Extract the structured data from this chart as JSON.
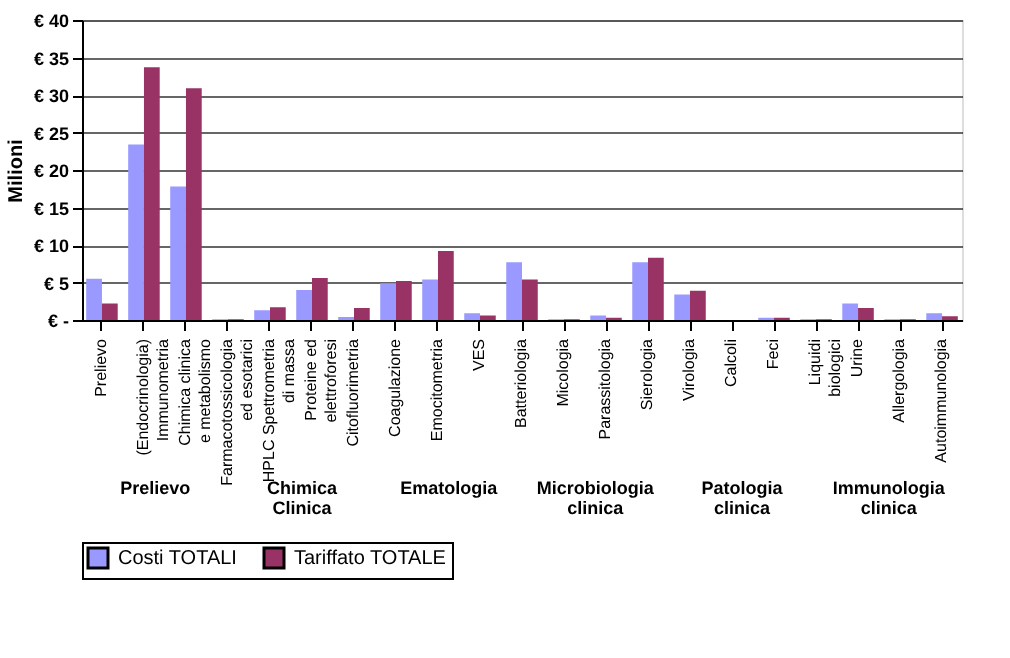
{
  "chart_data": {
    "type": "bar",
    "ylabel": "Milioni",
    "categories": [
      "Prelievo",
      "(Endocrinologia) Immunometria",
      "Chimica clinica e metabolismo",
      "Farmacotossicologia ed esotarici",
      "HPLC Spettrometria di massa",
      "Proteine ed elettroforesi",
      "Citofluorimetria",
      "Coagulazione",
      "Emocitometria",
      "VES",
      "Batteriologia",
      "Micologia",
      "Parassitologia",
      "Sierologia",
      "Virologia",
      "Calcoli",
      "Feci",
      "Liquidi biologici",
      "Urine",
      "Allergologia",
      "Autoimmunologia"
    ],
    "series": [
      {
        "name": "Costi TOTALI",
        "color": "#9999ff",
        "values": [
          5.5,
          23.4,
          17.8,
          0.1,
          1.3,
          4.0,
          0.4,
          4.9,
          5.4,
          0.9,
          7.7,
          0.1,
          0.6,
          7.7,
          3.4,
          0.0,
          0.3,
          0.1,
          2.2,
          0.1,
          0.9
        ]
      },
      {
        "name": "Tariffato TOTALE",
        "color": "#993366",
        "values": [
          2.2,
          33.7,
          30.9,
          0.1,
          1.7,
          5.6,
          1.6,
          5.2,
          9.2,
          0.6,
          5.4,
          0.1,
          0.3,
          8.3,
          3.9,
          0.0,
          0.3,
          0.1,
          1.6,
          0.1,
          0.5
        ]
      }
    ],
    "ylim": [
      0,
      40
    ],
    "yticks": [
      {
        "value": 0,
        "label": "€ -"
      },
      {
        "value": 5,
        "label": "€ 5"
      },
      {
        "value": 10,
        "label": "€ 10"
      },
      {
        "value": 15,
        "label": "€ 15"
      },
      {
        "value": 20,
        "label": "€ 20"
      },
      {
        "value": 25,
        "label": "€ 25"
      },
      {
        "value": 30,
        "label": "€ 30"
      },
      {
        "value": 35,
        "label": "€ 35"
      },
      {
        "value": 40,
        "label": "€ 40"
      }
    ],
    "annotations": [
      "Prelievo",
      "Chimica Clinica",
      "Ematologia",
      "Microbiologia clinica",
      "Patologia clinica",
      "Immunologia clinica"
    ],
    "grid": "y",
    "legend": "bottom"
  }
}
